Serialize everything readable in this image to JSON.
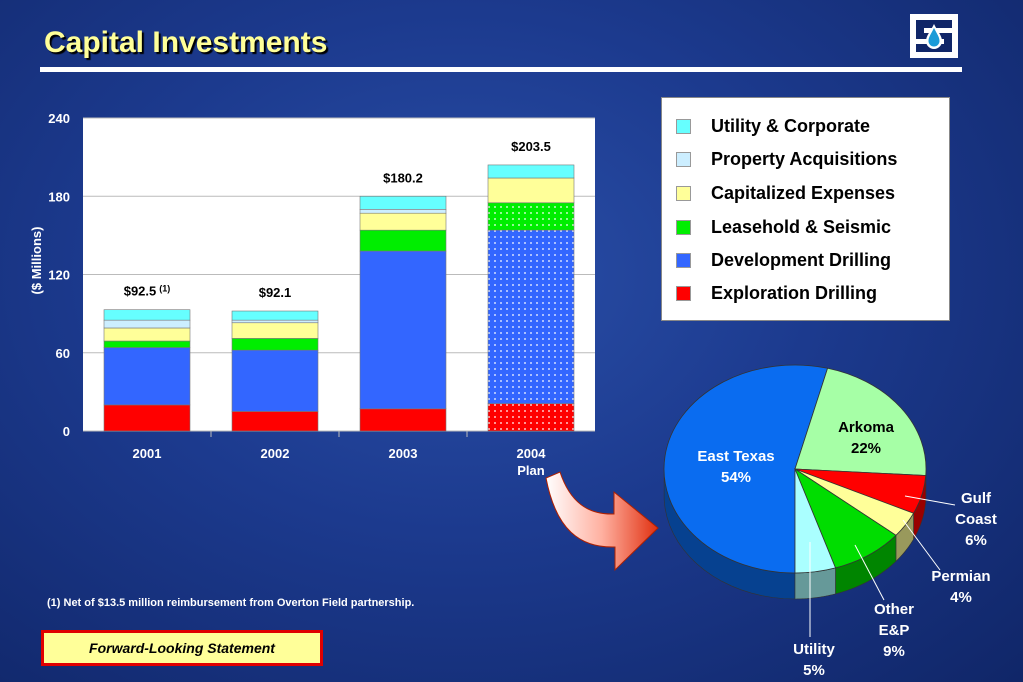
{
  "slide": {
    "title": "Capital Investments",
    "footnote": "(1)   Net of $13.5 million reimbursement from Overton Field partnership.",
    "forward_looking": "Forward-Looking Statement"
  },
  "legend": [
    {
      "label": "Utility & Corporate",
      "color": "#66ffff"
    },
    {
      "label": "Property Acquisitions",
      "color": "#cceeff"
    },
    {
      "label": "Capitalized Expenses",
      "color": "#ffff99"
    },
    {
      "label": "Leasehold & Seismic",
      "color": "#00ee00"
    },
    {
      "label": "Development Drilling",
      "color": "#3366ff"
    },
    {
      "label": "Exploration Drilling",
      "color": "#ff0000"
    }
  ],
  "chart_data": [
    {
      "type": "bar",
      "stacked": true,
      "ylabel": "($ Millions)",
      "ylim": [
        0,
        240
      ],
      "yticks": [
        0,
        60,
        120,
        180,
        240
      ],
      "grid": true,
      "categories": [
        "2001",
        "2002",
        "2003",
        "2004\nPlan"
      ],
      "totals": [
        "$92.5",
        "$92.1",
        "$180.2",
        "$203.5"
      ],
      "total_superscripts": [
        "(1)",
        "",
        "",
        ""
      ],
      "series": [
        {
          "name": "Exploration Drilling",
          "values": [
            20,
            15,
            17,
            21
          ]
        },
        {
          "name": "Development Drilling",
          "values": [
            44,
            47,
            121,
            133
          ]
        },
        {
          "name": "Leasehold & Seismic",
          "values": [
            5,
            9,
            16,
            21
          ]
        },
        {
          "name": "Capitalized Expenses",
          "values": [
            10,
            12,
            13,
            19
          ]
        },
        {
          "name": "Property Acquisitions",
          "values": [
            6,
            2,
            3,
            0
          ]
        },
        {
          "name": "Utility & Corporate",
          "values": [
            8,
            7,
            10,
            10
          ]
        }
      ],
      "series_colors": [
        "#ff0000",
        "#3366ff",
        "#00ee00",
        "#ffff99",
        "#cceeff",
        "#66ffff"
      ],
      "patterned_categories": [
        "2004\nPlan"
      ]
    },
    {
      "type": "pie",
      "slices": [
        {
          "label": "East Texas",
          "value": 54,
          "pct": "54%",
          "color": "#0a6cf0"
        },
        {
          "label": "Arkoma",
          "value": 22,
          "pct": "22%",
          "color": "#a6ffa6"
        },
        {
          "label": "Gulf Coast",
          "value": 6,
          "pct": "6%",
          "color": "#ff0000"
        },
        {
          "label": "Permian",
          "value": 4,
          "pct": "4%",
          "color": "#ffff99"
        },
        {
          "label": "Other E&P",
          "value": 9,
          "pct": "9%",
          "color": "#00dd00"
        },
        {
          "label": "Utility",
          "value": 5,
          "pct": "5%",
          "color": "#aaffff"
        }
      ]
    }
  ]
}
